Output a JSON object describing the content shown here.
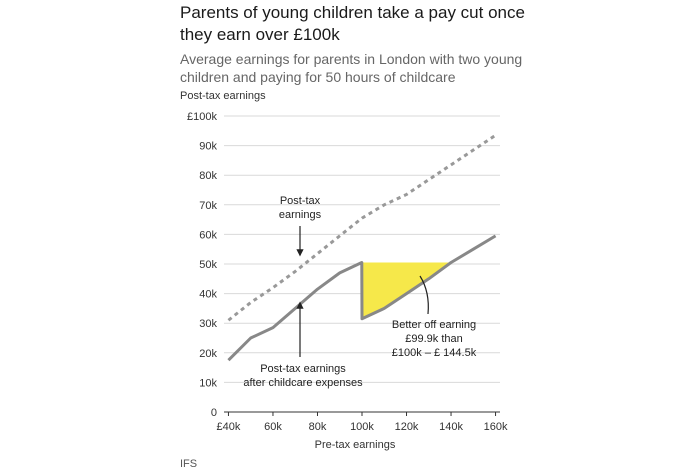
{
  "chart_data": {
    "type": "line",
    "title": "Parents of young children take a pay cut once they earn over £100k",
    "subtitle": "Average earnings for parents in London with two young children and paying for 50 hours of childcare",
    "ylabel": "Post-tax earnings",
    "xlabel": "Pre-tax earnings",
    "source": "IFS",
    "x_ticks": [
      {
        "value": 40000,
        "label": "£40k"
      },
      {
        "value": 60000,
        "label": "60k"
      },
      {
        "value": 80000,
        "label": "80k"
      },
      {
        "value": 100000,
        "label": "100k"
      },
      {
        "value": 120000,
        "label": "120k"
      },
      {
        "value": 140000,
        "label": "140k"
      },
      {
        "value": 160000,
        "label": "160k"
      }
    ],
    "y_ticks": [
      {
        "value": 0,
        "label": "0"
      },
      {
        "value": 10000,
        "label": "10k"
      },
      {
        "value": 20000,
        "label": "20k"
      },
      {
        "value": 30000,
        "label": "30k"
      },
      {
        "value": 40000,
        "label": "40k"
      },
      {
        "value": 50000,
        "label": "50k"
      },
      {
        "value": 60000,
        "label": "60k"
      },
      {
        "value": 70000,
        "label": "70k"
      },
      {
        "value": 80000,
        "label": "80k"
      },
      {
        "value": 90000,
        "label": "90k"
      },
      {
        "value": 100000,
        "label": "£100k"
      }
    ],
    "xlim": [
      38000,
      162000
    ],
    "ylim": [
      0,
      100000
    ],
    "grid": true,
    "series": [
      {
        "name": "Post-tax earnings",
        "style": "dotted",
        "color": "#999999",
        "points": [
          [
            40000,
            31000
          ],
          [
            50000,
            37000
          ],
          [
            60000,
            42000
          ],
          [
            70000,
            47500
          ],
          [
            80000,
            53500
          ],
          [
            90000,
            59500
          ],
          [
            100000,
            65500
          ],
          [
            110000,
            70000
          ],
          [
            120000,
            73500
          ],
          [
            130000,
            78500
          ],
          [
            140000,
            83500
          ],
          [
            150000,
            88500
          ],
          [
            160000,
            93500
          ]
        ]
      },
      {
        "name": "Post-tax earnings after childcare expenses",
        "style": "solid",
        "color": "#888888",
        "points": [
          [
            40000,
            17500
          ],
          [
            44000,
            20500
          ],
          [
            50000,
            25000
          ],
          [
            60000,
            28500
          ],
          [
            70000,
            35000
          ],
          [
            80000,
            41500
          ],
          [
            90000,
            47000
          ],
          [
            99900,
            50500
          ],
          [
            100000,
            31500
          ],
          [
            110000,
            35000
          ],
          [
            120000,
            40000
          ],
          [
            130000,
            45000
          ],
          [
            140000,
            50500
          ],
          [
            150000,
            55000
          ],
          [
            160000,
            59500
          ]
        ]
      }
    ],
    "highlight": {
      "color": "#f6e84a",
      "points": [
        [
          100000,
          50500
        ],
        [
          140000,
          50500
        ],
        [
          120000,
          40000
        ],
        [
          110000,
          35000
        ],
        [
          100000,
          31500
        ]
      ]
    },
    "annotations": [
      {
        "lines": [
          "Post-tax",
          "earnings"
        ]
      },
      {
        "lines": [
          "Post-tax earnings",
          "after childcare expenses"
        ]
      },
      {
        "lines": [
          "Better off earning",
          "£99.9k than",
          "£100k – £ 144.5k"
        ]
      }
    ]
  }
}
